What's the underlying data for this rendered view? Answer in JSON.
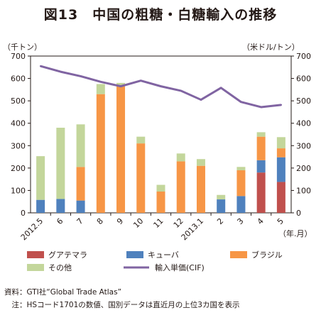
{
  "figure_title": "図13　中国の粗糖・白糖輸入の推移",
  "source_text": "資料：GTI社“Global Trade Atlas”",
  "note_text": "　注：HSコード1701の数値、国別データは直近月の上位3カ国を表示",
  "colors": {
    "guatemala": "#c0504d",
    "cuba": "#4f81bd",
    "brazil": "#f79646",
    "others": "#c3d69b",
    "price_line": "#8064a2",
    "axis": "#231815"
  },
  "chart_data": {
    "type": "bar",
    "stacked": true,
    "title": "中国の粗糖・白糖輸入の推移",
    "left_axis_unit": "（千トン）",
    "right_axis_unit": "（米ドル/トン）",
    "x_axis_unit": "（年.月）",
    "ylim_left": [
      0,
      700
    ],
    "ylim_right": [
      0,
      700
    ],
    "yticks": [
      0,
      100,
      200,
      300,
      400,
      500,
      600,
      700
    ],
    "grid": false,
    "legend_position": "bottom",
    "categories": [
      "2012.5",
      "6",
      "7",
      "8",
      "9",
      "10",
      "11",
      "12",
      "2013.1",
      "2",
      "3",
      "4",
      "5"
    ],
    "series": [
      {
        "name": "グアテマラ",
        "key": "guatemala",
        "axis": "left",
        "values": [
          0,
          0,
          0,
          0,
          0,
          0,
          0,
          0,
          0,
          0,
          0,
          180,
          138
        ]
      },
      {
        "name": "キューバ",
        "key": "cuba",
        "axis": "left",
        "values": [
          58,
          62,
          55,
          0,
          0,
          0,
          0,
          0,
          0,
          60,
          75,
          55,
          110
        ]
      },
      {
        "name": "ブラジル",
        "key": "brazil",
        "axis": "left",
        "values": [
          0,
          0,
          150,
          530,
          565,
          310,
          95,
          230,
          210,
          0,
          115,
          105,
          40
        ]
      },
      {
        "name": "その他",
        "key": "others",
        "axis": "left",
        "values": [
          195,
          318,
          190,
          45,
          15,
          30,
          30,
          35,
          30,
          20,
          15,
          20,
          50
        ]
      },
      {
        "name": "輸入単価(CIF)",
        "key": "price_line",
        "axis": "right",
        "type": "line",
        "values": [
          655,
          630,
          610,
          585,
          565,
          590,
          565,
          545,
          505,
          558,
          495,
          472,
          482
        ]
      }
    ]
  }
}
